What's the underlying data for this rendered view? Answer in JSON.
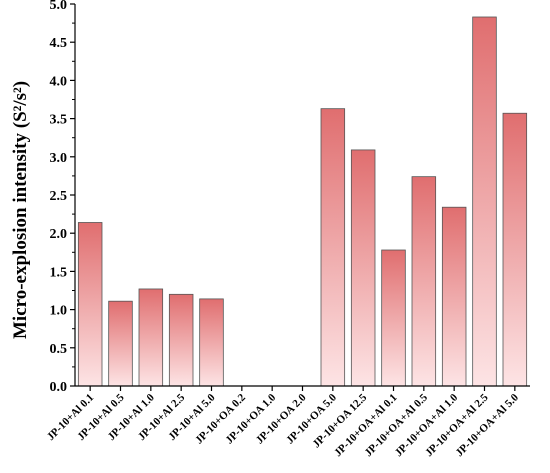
{
  "chart_data": {
    "type": "bar",
    "title": "",
    "xlabel": "",
    "ylabel": "Micro-explosion intensity (S²/s²)",
    "ylim": [
      0,
      5.0
    ],
    "yticks": [
      "0.0",
      "0.5",
      "1.0",
      "1.5",
      "2.0",
      "2.5",
      "3.0",
      "3.5",
      "4.0",
      "4.5",
      "5.0"
    ],
    "grid": false,
    "legend": "none",
    "bar_gradient": {
      "top": "#e06e6f",
      "bottom": "#fde4e5"
    },
    "categories": [
      "JP-10+Al 0.1",
      "JP-10+Al 0.5",
      "JP-10+Al 1.0",
      "JP-10+Al 2.5",
      "JP-10+Al 5.0",
      "JP-10+OA 0.2",
      "JP-10+OA 1.0",
      "JP-10+OA 2.0",
      "JP-10+OA 5.0",
      "JP-10+OA 12.5",
      "JP-10+OA+Al 0.1",
      "JP-10+OA+Al 0.5",
      "JP-10+OA+Al 1.0",
      "JP-10+OA+Al 2.5",
      "JP-10+OA+Al 5.0"
    ],
    "values": [
      2.14,
      1.11,
      1.27,
      1.2,
      1.14,
      0,
      0,
      0,
      3.63,
      3.09,
      1.78,
      2.74,
      2.34,
      4.83,
      3.57
    ]
  }
}
